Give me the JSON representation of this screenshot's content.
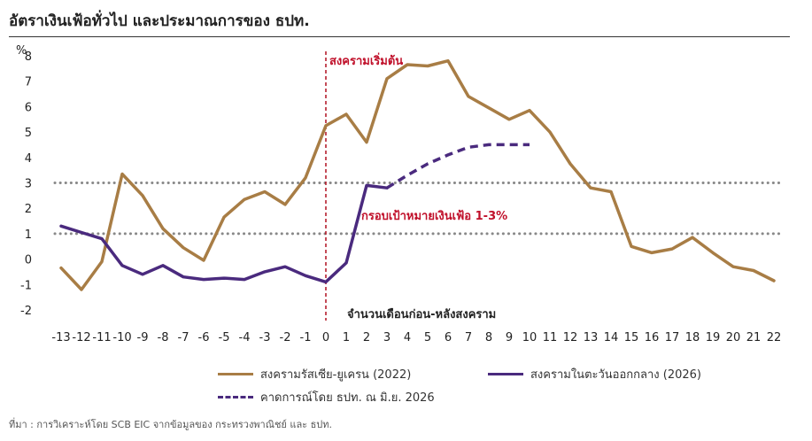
{
  "header": {
    "title": "อัตราเงินเฟ้อทั่วไป และประมาณการของ ธปท."
  },
  "footer": {
    "source": "ที่มา : การวิเคราะห์โดย SCB EIC จากข้อมูลของ กระทรวงพาณิชย์ และ ธปท."
  },
  "chart_data": {
    "type": "line",
    "ylabel": "%",
    "xlabel": "จำนวนเดือนก่อน-หลังสงคราม",
    "ylim": [
      -2,
      8
    ],
    "xlim": [
      -13,
      22
    ],
    "grid": false,
    "x_ticks": [
      -13,
      -12,
      -11,
      -10,
      -9,
      -8,
      -7,
      -6,
      -5,
      -4,
      -3,
      -2,
      -1,
      0,
      1,
      2,
      3,
      4,
      5,
      6,
      7,
      8,
      9,
      10,
      11,
      12,
      13,
      14,
      15,
      16,
      17,
      18,
      19,
      20,
      21,
      22
    ],
    "y_ticks": [
      -2,
      -1,
      0,
      1,
      2,
      3,
      4,
      5,
      6,
      7,
      8
    ],
    "series": [
      {
        "name": "สงครามรัสเซีย-ยูเครน (2022)",
        "color": "#a87d45",
        "style": "solid",
        "x": [
          -13,
          -12,
          -11,
          -10,
          -9,
          -8,
          -7,
          -6,
          -5,
          -4,
          -3,
          -2,
          -1,
          0,
          1,
          2,
          3,
          4,
          5,
          6,
          7,
          8,
          9,
          10,
          11,
          12,
          13,
          14,
          15,
          16,
          17,
          18,
          19,
          20,
          21,
          22
        ],
        "values": [
          -0.35,
          -1.2,
          -0.1,
          3.35,
          2.5,
          1.2,
          0.45,
          -0.05,
          1.65,
          2.35,
          2.65,
          2.15,
          3.2,
          5.25,
          5.7,
          4.6,
          7.1,
          7.65,
          7.6,
          7.8,
          6.4,
          5.95,
          5.5,
          5.85,
          5.0,
          3.75,
          2.8,
          2.65,
          0.5,
          0.25,
          0.4,
          0.85,
          0.25,
          -0.3,
          -0.45,
          -0.85
        ]
      },
      {
        "name": "สงครามในตะวันออกกลาง (2026)",
        "color": "#4a2a7e",
        "style": "solid",
        "x": [
          -13,
          -12,
          -11,
          -10,
          -9,
          -8,
          -7,
          -6,
          -5,
          -4,
          -3,
          -2,
          -1,
          0,
          1,
          2,
          3
        ],
        "values": [
          1.3,
          1.05,
          0.8,
          -0.25,
          -0.6,
          -0.25,
          -0.7,
          -0.8,
          -0.75,
          -0.8,
          -0.5,
          -0.3,
          -0.65,
          -0.9,
          -0.15,
          2.9,
          2.8
        ]
      },
      {
        "name": "คาดการณ์โดย ธปท. ณ มิ.ย. 2026",
        "color": "#4a2a7e",
        "style": "dashed",
        "x": [
          3,
          4,
          5,
          6,
          7,
          8,
          9,
          10
        ],
        "values": [
          2.8,
          3.3,
          3.75,
          4.1,
          4.4,
          4.5,
          4.5,
          4.5
        ]
      }
    ],
    "reference_lines": [
      {
        "y": 3,
        "color": "#888888",
        "style": "dotted"
      },
      {
        "y": 1,
        "color": "#888888",
        "style": "dotted"
      }
    ],
    "vertical_marker": {
      "x": 0,
      "color": "#b01020",
      "style": "dashed"
    },
    "annotations": [
      {
        "text": "สงครามเริ่มต้น",
        "color": "#c0102a"
      },
      {
        "text": "กรอบเป้าหมายเงินเฟ้อ 1-3%",
        "color": "#c0102a"
      }
    ],
    "legend_position": "bottom"
  }
}
